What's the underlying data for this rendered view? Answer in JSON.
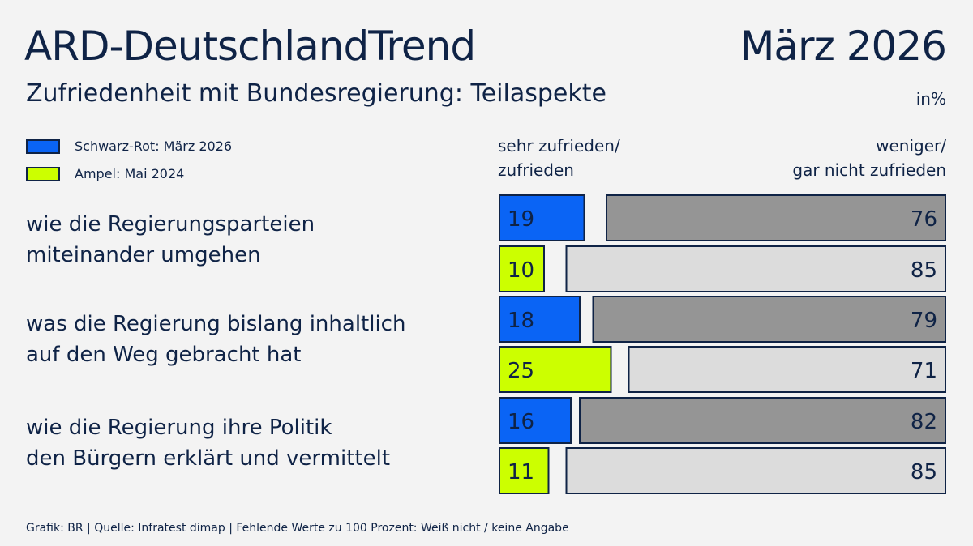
{
  "header": {
    "title": "ARD-DeutschlandTrend",
    "date": "März 2026",
    "subtitle": "Zufriedenheit mit Bundesregierung: Teilaspekte",
    "unit": "in%"
  },
  "footer": "Grafik: BR | Quelle: Infratest dimap | Fehlende Werte zu 100 Prozent: Weiß nicht / keine Angabe",
  "colors": {
    "schwarz_rot": "#0a64f5",
    "ampel": "#ccff00",
    "unzufrieden_schwarz_rot": "#959595",
    "unzufrieden_ampel": "#dcdcdc",
    "outline": "#0f2346",
    "background": "#f3f3f3"
  },
  "chart_data": {
    "type": "bar",
    "orientation": "horizontal",
    "unit": "in%",
    "column_headers": [
      "sehr zufrieden/ zufrieden",
      "weniger/ gar nicht zufrieden"
    ],
    "column_header_lines": [
      [
        "sehr zufrieden/",
        "zufrieden"
      ],
      [
        "weniger/",
        "gar nicht zufrieden"
      ]
    ],
    "legend": [
      "Schwarz-Rot: März 2026",
      "Ampel: Mai 2024"
    ],
    "legend_placement": "top-left",
    "categories": [
      [
        "wie die Regierungsparteien",
        "miteinander umgehen"
      ],
      [
        "was die Regierung bislang inhaltlich",
        "auf den Weg gebracht hat"
      ],
      [
        "wie die Regierung ihre Politik",
        "den Bürgern erklärt und vermittelt"
      ]
    ],
    "series": [
      {
        "name": "Schwarz-Rot: März 2026",
        "zufrieden": [
          19,
          18,
          16
        ],
        "nicht_zufrieden": [
          76,
          79,
          82
        ]
      },
      {
        "name": "Ampel: Mai 2024",
        "zufrieden": [
          10,
          25,
          11
        ],
        "nicht_zufrieden": [
          85,
          71,
          85
        ]
      }
    ],
    "xlim": [
      0,
      100
    ]
  }
}
